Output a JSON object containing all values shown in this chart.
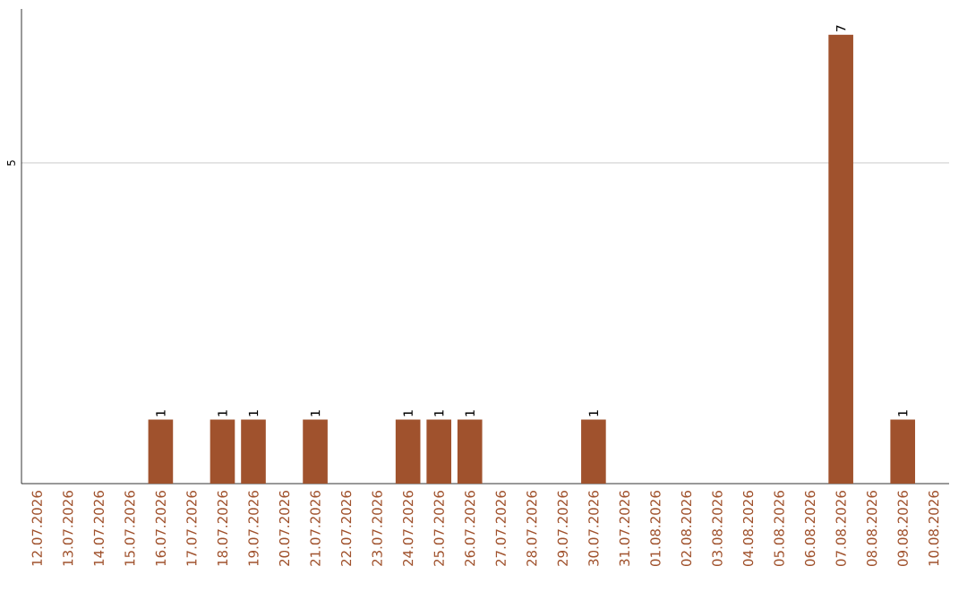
{
  "chart_data": {
    "type": "bar",
    "categories": [
      "12.07.2026",
      "13.07.2026",
      "14.07.2026",
      "15.07.2026",
      "16.07.2026",
      "17.07.2026",
      "18.07.2026",
      "19.07.2026",
      "20.07.2026",
      "21.07.2026",
      "22.07.2026",
      "23.07.2026",
      "24.07.2026",
      "25.07.2026",
      "26.07.2026",
      "27.07.2026",
      "28.07.2026",
      "29.07.2026",
      "30.07.2026",
      "31.07.2026",
      "01.08.2026",
      "02.08.2026",
      "03.08.2026",
      "04.08.2026",
      "05.08.2026",
      "06.08.2026",
      "07.08.2026",
      "08.08.2026",
      "09.08.2026",
      "10.08.2026"
    ],
    "values": [
      0,
      0,
      0,
      0,
      1,
      0,
      1,
      1,
      0,
      1,
      0,
      0,
      1,
      1,
      1,
      0,
      0,
      0,
      1,
      0,
      0,
      0,
      0,
      0,
      0,
      0,
      7,
      0,
      1,
      0
    ],
    "value_labels": [
      null,
      null,
      null,
      null,
      "1",
      null,
      "1",
      "1",
      null,
      "1",
      null,
      null,
      "1",
      "1",
      "1",
      null,
      null,
      null,
      "1",
      null,
      null,
      null,
      null,
      null,
      null,
      null,
      "7",
      null,
      "1",
      null
    ],
    "color": "#a0522d",
    "ylim": [
      0,
      7.4
    ],
    "yticks": [
      5
    ],
    "grid": "y"
  }
}
